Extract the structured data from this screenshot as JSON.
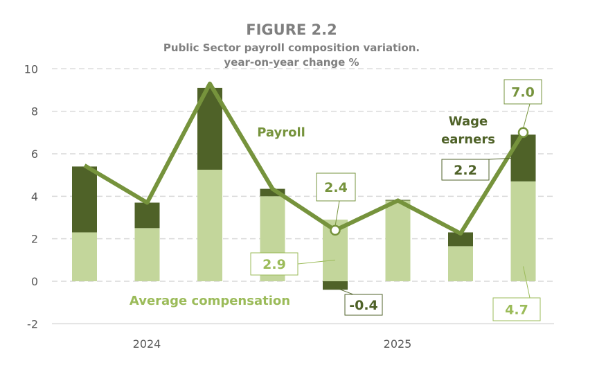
{
  "chart_data": {
    "type": "bar",
    "title": "FIGURE 2.2",
    "subtitle": [
      "Public Sector payroll composition variation.",
      "year-on-year change %"
    ],
    "ylim": [
      -2,
      10
    ],
    "yticks": [
      "-2",
      "0",
      "2",
      "4",
      "6",
      "8",
      "10"
    ],
    "grid": true,
    "x_group_labels": [
      "2024",
      "2025"
    ],
    "stacked": true,
    "series": [
      {
        "name": "Average compensation",
        "type": "bar",
        "color": "#c3d69b",
        "values": [
          2.3,
          2.5,
          5.25,
          4.0,
          2.9,
          3.8,
          1.65,
          4.7
        ]
      },
      {
        "name": "Wage earners",
        "type": "bar",
        "color": "#4f6228",
        "values": [
          3.1,
          1.2,
          3.85,
          0.35,
          -0.4,
          0.03,
          0.65,
          2.2
        ]
      },
      {
        "name": "Payroll",
        "type": "line",
        "color": "#76933c",
        "values": [
          5.45,
          3.7,
          9.3,
          4.35,
          2.4,
          3.8,
          2.25,
          7.0
        ]
      }
    ],
    "annotations": [
      "2.4",
      "2.9",
      "-0.4",
      "7.0",
      "2.2",
      "4.7"
    ],
    "series_labels": {
      "payroll": "Payroll",
      "wage_earners": [
        "Wage",
        "earners"
      ],
      "average_compensation": "Average compensation"
    }
  }
}
